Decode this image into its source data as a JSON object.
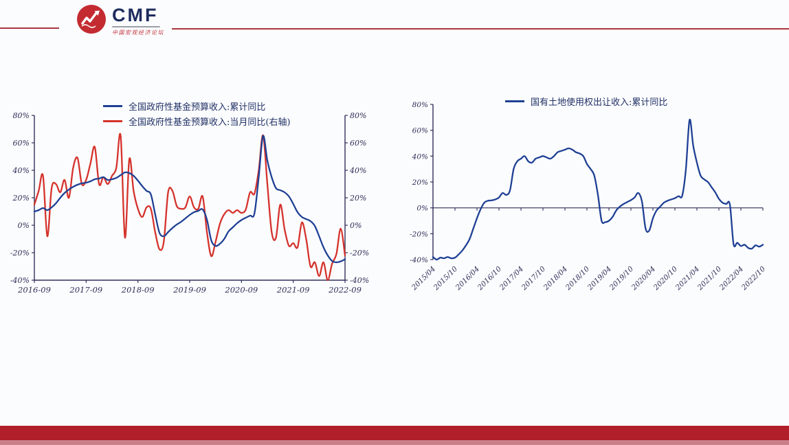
{
  "page": {
    "background": "#fbfcfe"
  },
  "header": {
    "logo": {
      "text": "CMF",
      "subtext": "中国宏观经济论坛",
      "circle_color": "#c32b31",
      "text_color": "#1c2c5e",
      "subtext_color": "#c23a40",
      "micro_bar_color": "#9aa0a8"
    },
    "rule_color": "#a8353f"
  },
  "footer": {
    "bar_color": "#b01f2a",
    "strip_color": "#c97f88"
  },
  "text_colors": {
    "axis_label": "#2e2e57",
    "legend_label": "#203065",
    "axis_line": "#30305a"
  },
  "chart_data": [
    {
      "type": "line",
      "title": "",
      "x_label_style": "horizontal",
      "x_tick_labels": [
        "2016-09",
        "2017-09",
        "2018-09",
        "2019-09",
        "2020-09",
        "2021-09",
        "2022-09"
      ],
      "y_tick_labels": [
        "80%",
        "60%",
        "40%",
        "20%",
        "0%",
        "-20%",
        "-40%"
      ],
      "y_tick_values": [
        80,
        60,
        40,
        20,
        0,
        -20,
        -40
      ],
      "ylim": [
        -40,
        80
      ],
      "dual_axis": true,
      "grid": false,
      "legend_position": "top",
      "series": [
        {
          "name": "全国政府性基金预算收入:累计同比",
          "axis": "left",
          "color": "#1e4094",
          "values": [
            10,
            11,
            12.5,
            11,
            13,
            16,
            20,
            23.5,
            26,
            28,
            29.5,
            30.5,
            31,
            32,
            33.5,
            34,
            35,
            33,
            33.5,
            34.5,
            36.5,
            38.5,
            38,
            36,
            32.5,
            28.5,
            25,
            22.5,
            8,
            -5.5,
            -8,
            -5,
            -2,
            0.5,
            2.5,
            5,
            7.5,
            9.5,
            10.5,
            11.5,
            4,
            -11,
            -15,
            -13.5,
            -10,
            -4.5,
            -1.5,
            1.5,
            3.8,
            5.5,
            7,
            8.5,
            35,
            65,
            47,
            35,
            27,
            25.5,
            24,
            21,
            15.5,
            9.5,
            6,
            4.5,
            3,
            -0.5,
            -8,
            -16,
            -22,
            -26,
            -27,
            -26.3,
            -24.8
          ]
        },
        {
          "name": "全国政府性基金预算收入:当月同比(右轴)",
          "axis": "right",
          "color": "#d5322b",
          "values": [
            15,
            25,
            36,
            -8,
            27,
            30,
            24,
            33,
            20,
            42,
            49,
            30,
            33,
            45,
            57,
            30,
            35,
            30,
            36,
            42,
            65,
            -9,
            48,
            25,
            12,
            6,
            13,
            12,
            -5,
            -17.5,
            -12,
            24,
            25,
            14,
            12,
            13,
            21,
            13,
            12,
            21,
            -5,
            -22.5,
            -12,
            1,
            8,
            11,
            9,
            11,
            9,
            11.5,
            24,
            23,
            40,
            65.5,
            30,
            -5,
            -9,
            15,
            -3,
            -15,
            -13,
            -16,
            2,
            -10,
            -30,
            -27,
            -37,
            -27,
            -40,
            -28,
            -21,
            -2.5,
            -22
          ]
        }
      ]
    },
    {
      "type": "line",
      "title": "",
      "x_label_style": "rotated",
      "x_tick_labels": [
        "2015/04",
        "2015/10",
        "2016/04",
        "2016/10",
        "2017/04",
        "2017/10",
        "2018/04",
        "2018/10",
        "2019/04",
        "2019/10",
        "2020/04",
        "2020/10",
        "2021/04",
        "2021/10",
        "2022/04",
        "2022/10"
      ],
      "y_tick_labels": [
        "80%",
        "60%",
        "40%",
        "20%",
        "0%",
        "-20%",
        "-40%"
      ],
      "y_tick_values": [
        80,
        60,
        40,
        20,
        0,
        -20,
        -40
      ],
      "ylim": [
        -40,
        80
      ],
      "dual_axis": false,
      "grid": false,
      "legend_position": "top",
      "series": [
        {
          "name": "国有土地使用权出让收入:累计同比",
          "axis": "left",
          "color": "#1e4094",
          "values": [
            -38,
            -40,
            -38.5,
            -39,
            -38,
            -39,
            -38.5,
            -36,
            -33,
            -29,
            -24,
            -16,
            -8,
            -1,
            4,
            5.5,
            5.8,
            6.5,
            8,
            11.5,
            10,
            13.5,
            30,
            36,
            38,
            40,
            36,
            35,
            38,
            39,
            40,
            39,
            38,
            40,
            43,
            44,
            45,
            46,
            45,
            43,
            42,
            40,
            34,
            30,
            25,
            10,
            -10,
            -11,
            -10,
            -7,
            -2,
            1,
            3,
            4.5,
            6,
            8,
            11.5,
            5,
            -16,
            -17.5,
            -8,
            -2,
            1,
            4,
            5.5,
            6.5,
            7.5,
            9,
            9.5,
            30,
            68,
            48,
            35,
            25,
            22,
            20,
            16,
            12,
            7,
            4,
            3,
            2.5,
            -28,
            -27,
            -29.5,
            -28.5,
            -31,
            -31.5,
            -29,
            -30,
            -28.5
          ]
        }
      ]
    }
  ]
}
